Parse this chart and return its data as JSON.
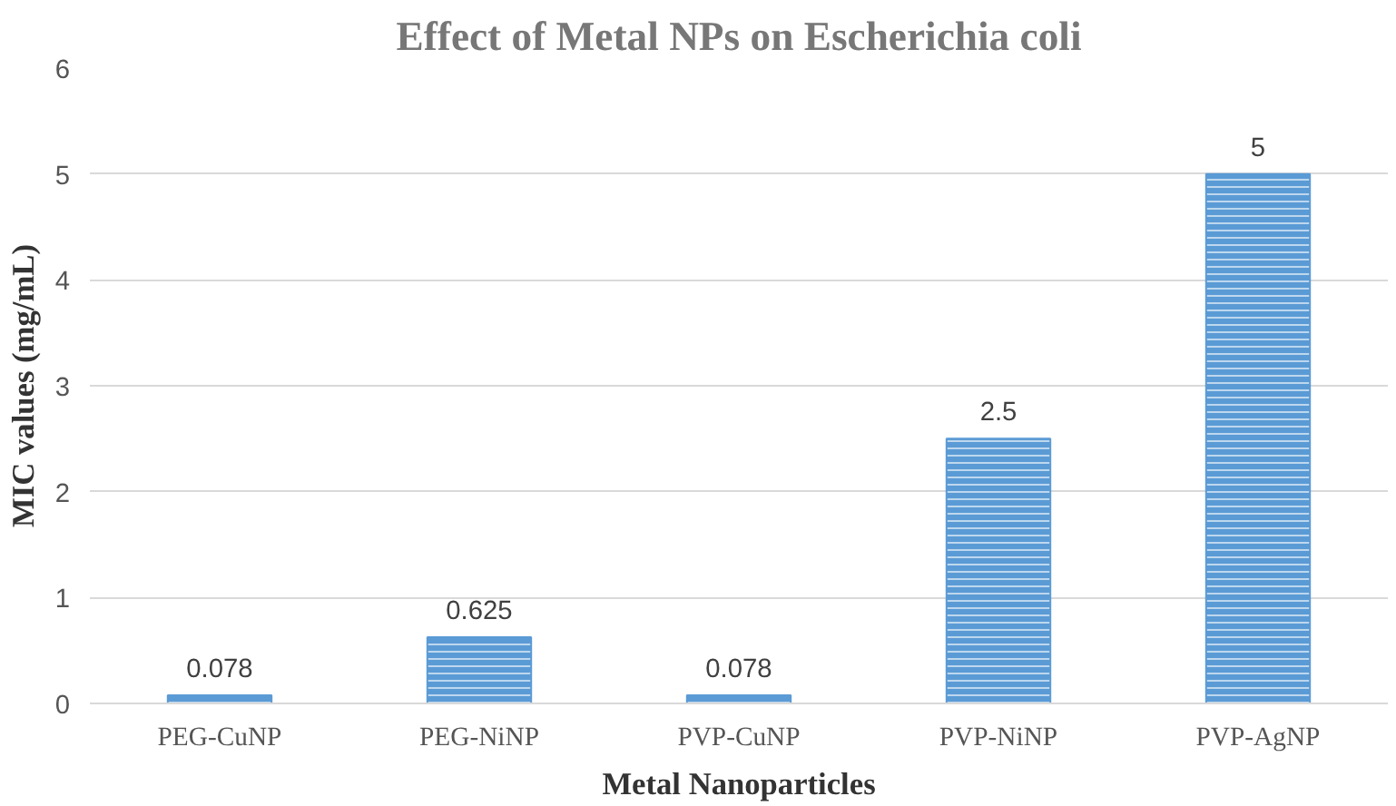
{
  "chart_data": {
    "type": "bar",
    "title": "Effect of Metal NPs on Escherichia coli",
    "xlabel": "Metal Nanoparticles",
    "ylabel": "MIC values (mg/mL)",
    "categories": [
      "PEG-CuNP",
      "PEG-NiNP",
      "PVP-CuNP",
      "PVP-NiNP",
      "PVP-AgNP"
    ],
    "values": [
      0.078,
      0.625,
      0.078,
      2.5,
      5
    ],
    "color": "#5b9bd5",
    "ylim": [
      0,
      6
    ],
    "yticks": [
      0,
      1,
      2,
      3,
      4,
      5,
      6
    ],
    "grid": "y",
    "data_labels": true
  }
}
